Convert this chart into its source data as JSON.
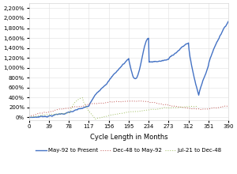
{
  "title": "",
  "xlabel": "Cycle Length in Months",
  "ylabel": "",
  "xlim": [
    0,
    390
  ],
  "ylim": [
    -50,
    2300
  ],
  "yticks": [
    0,
    200,
    400,
    600,
    800,
    1000,
    1200,
    1400,
    1600,
    1800,
    2000,
    2200
  ],
  "ytick_labels": [
    "0%",
    "200%",
    "400%",
    "600%",
    "800%",
    "1,000%",
    "1,200%",
    "1,400%",
    "1,600%",
    "1,800%",
    "2,000%",
    "2,200%"
  ],
  "xticks": [
    0,
    39,
    78,
    117,
    156,
    195,
    234,
    273,
    312,
    351,
    390
  ],
  "grid_color": "#e0e0e0",
  "background_color": "#ffffff",
  "series": [
    {
      "label": "May-92 to Present",
      "color": "#4472c4",
      "linewidth": 1.0,
      "style": "solid"
    },
    {
      "label": "Dec-48 to May-92",
      "color": "#c0504d",
      "linewidth": 0.7,
      "style": "dotted"
    },
    {
      "label": "Jul-21 to Dec-48",
      "color": "#9bbb59",
      "linewidth": 0.7,
      "style": "dotted"
    }
  ],
  "legend_fontsize": 5.0,
  "axis_fontsize": 6,
  "tick_fontsize": 5
}
